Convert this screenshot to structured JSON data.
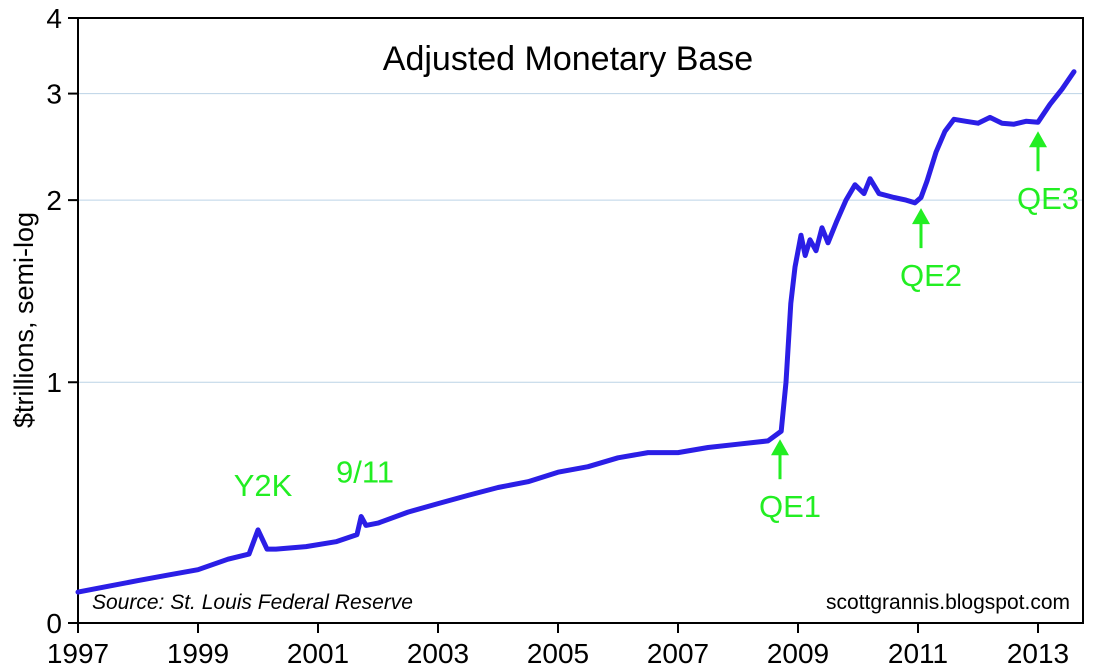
{
  "chart_data": {
    "type": "line",
    "title": "Adjusted Monetary Base",
    "ylabel": "$trillions, semi-log",
    "xlabel": "",
    "yscale": "log",
    "xlim": [
      1997,
      2013.75
    ],
    "ylim": [
      0,
      4
    ],
    "yticks": [
      "0",
      "1",
      "2",
      "3",
      "4"
    ],
    "xticks": [
      "1997",
      "1999",
      "2001",
      "2003",
      "2005",
      "2007",
      "2009",
      "2011",
      "2013"
    ],
    "grid": "horizontal",
    "line_color": "#2b1ee6",
    "annotation_color": "#22ee22",
    "source": "Source:  St. Louis Federal Reserve",
    "credit": "scottgrannis.blogspot.com",
    "annotations": [
      {
        "label": "Y2K",
        "x": 2000.0,
        "y": 0.57
      },
      {
        "label": "9/11",
        "x": 2001.7,
        "y": 0.6
      },
      {
        "label": "QE1",
        "x": 2008.7,
        "y": 0.83
      },
      {
        "label": "QE2",
        "x": 2011.05,
        "y": 2.0
      },
      {
        "label": "QE3",
        "x": 2013.0,
        "y": 2.68
      }
    ],
    "series": [
      {
        "values": [
          [
            1997.0,
            0.45
          ],
          [
            1997.5,
            0.46
          ],
          [
            1998.0,
            0.47
          ],
          [
            1998.5,
            0.48
          ],
          [
            1999.0,
            0.49
          ],
          [
            1999.5,
            0.51
          ],
          [
            1999.85,
            0.52
          ],
          [
            2000.0,
            0.57
          ],
          [
            2000.15,
            0.53
          ],
          [
            2000.3,
            0.53
          ],
          [
            2000.8,
            0.535
          ],
          [
            2001.3,
            0.545
          ],
          [
            2001.65,
            0.56
          ],
          [
            2001.72,
            0.6
          ],
          [
            2001.8,
            0.58
          ],
          [
            2002.0,
            0.585
          ],
          [
            2002.5,
            0.61
          ],
          [
            2003.0,
            0.63
          ],
          [
            2003.5,
            0.65
          ],
          [
            2004.0,
            0.67
          ],
          [
            2004.5,
            0.685
          ],
          [
            2005.0,
            0.71
          ],
          [
            2005.5,
            0.725
          ],
          [
            2006.0,
            0.75
          ],
          [
            2006.5,
            0.765
          ],
          [
            2007.0,
            0.765
          ],
          [
            2007.5,
            0.78
          ],
          [
            2008.0,
            0.79
          ],
          [
            2008.5,
            0.8
          ],
          [
            2008.72,
            0.83
          ],
          [
            2008.8,
            1.0
          ],
          [
            2008.88,
            1.35
          ],
          [
            2008.95,
            1.55
          ],
          [
            2009.05,
            1.75
          ],
          [
            2009.12,
            1.62
          ],
          [
            2009.2,
            1.72
          ],
          [
            2009.3,
            1.65
          ],
          [
            2009.4,
            1.8
          ],
          [
            2009.5,
            1.7
          ],
          [
            2009.65,
            1.85
          ],
          [
            2009.8,
            2.0
          ],
          [
            2009.95,
            2.12
          ],
          [
            2010.1,
            2.05
          ],
          [
            2010.2,
            2.17
          ],
          [
            2010.35,
            2.05
          ],
          [
            2010.6,
            2.02
          ],
          [
            2010.8,
            2.0
          ],
          [
            2010.95,
            1.98
          ],
          [
            2011.05,
            2.02
          ],
          [
            2011.15,
            2.15
          ],
          [
            2011.3,
            2.4
          ],
          [
            2011.45,
            2.6
          ],
          [
            2011.6,
            2.72
          ],
          [
            2011.8,
            2.7
          ],
          [
            2012.0,
            2.68
          ],
          [
            2012.2,
            2.74
          ],
          [
            2012.4,
            2.68
          ],
          [
            2012.6,
            2.67
          ],
          [
            2012.8,
            2.7
          ],
          [
            2013.0,
            2.69
          ],
          [
            2013.2,
            2.88
          ],
          [
            2013.4,
            3.05
          ],
          [
            2013.6,
            3.26
          ]
        ]
      }
    ]
  }
}
